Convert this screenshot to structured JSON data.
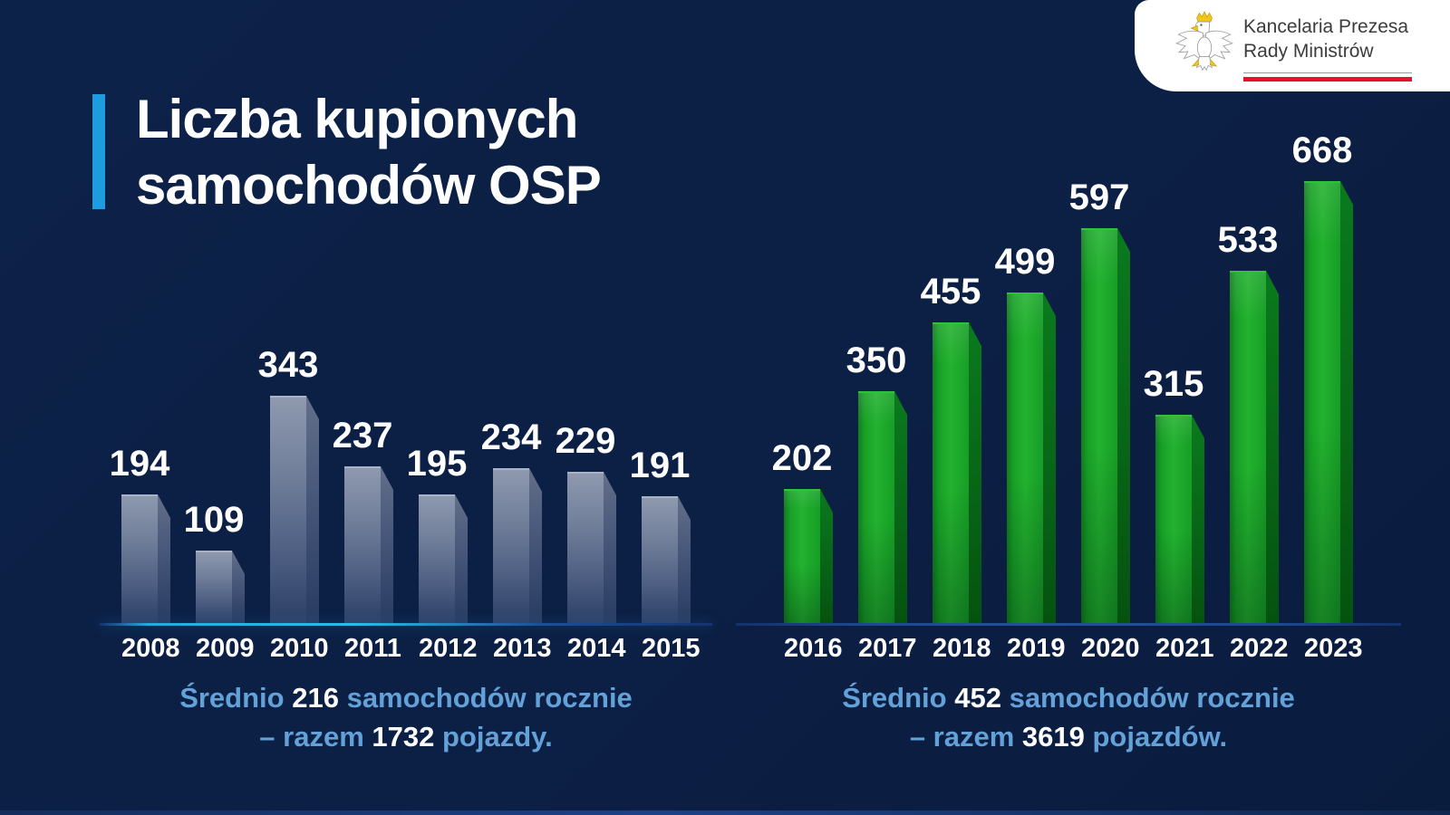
{
  "page": {
    "background": "#0c1f44",
    "bottom_strip_color": "#1d4187"
  },
  "header": {
    "title_line1": "Liczba kupionych",
    "title_line2": "samochodów OSP",
    "accent_color": "#1f9ce0"
  },
  "logo": {
    "org_line1": "Kancelaria Prezesa",
    "org_line2": "Rady Ministrów",
    "eagle_icon": "polish-eagle-coat-of-arms",
    "red_bar_color": "#e8112d"
  },
  "chart_data": [
    {
      "type": "bar",
      "categories": [
        "2008",
        "2009",
        "2010",
        "2011",
        "2012",
        "2013",
        "2014",
        "2015"
      ],
      "values": [
        194,
        109,
        343,
        237,
        195,
        234,
        229,
        191
      ],
      "ylim": [
        0,
        668
      ],
      "grid": false,
      "legend": "none",
      "value_labels": "above-bars",
      "bar_color": "#76839d",
      "bar_side_color": "#47577a",
      "caption": {
        "lead": "Średnio",
        "average": "216",
        "line1_rest": "samochodów rocznie",
        "line2_lead": "– razem",
        "total": "1732",
        "line2_rest": "pojazdy."
      }
    },
    {
      "type": "bar",
      "categories": [
        "2016",
        "2017",
        "2018",
        "2019",
        "2020",
        "2021",
        "2022",
        "2023"
      ],
      "values": [
        202,
        350,
        455,
        499,
        597,
        315,
        533,
        668
      ],
      "ylim": [
        0,
        668
      ],
      "grid": false,
      "legend": "none",
      "value_labels": "above-bars",
      "bar_color": "#1fae2c",
      "bar_side_color": "#086517",
      "caption": {
        "lead": "Średnio",
        "average": "452",
        "line1_rest": "samochodów rocznie",
        "line2_lead": "– razem",
        "total": "3619",
        "line2_rest": "pojazdów."
      }
    }
  ]
}
